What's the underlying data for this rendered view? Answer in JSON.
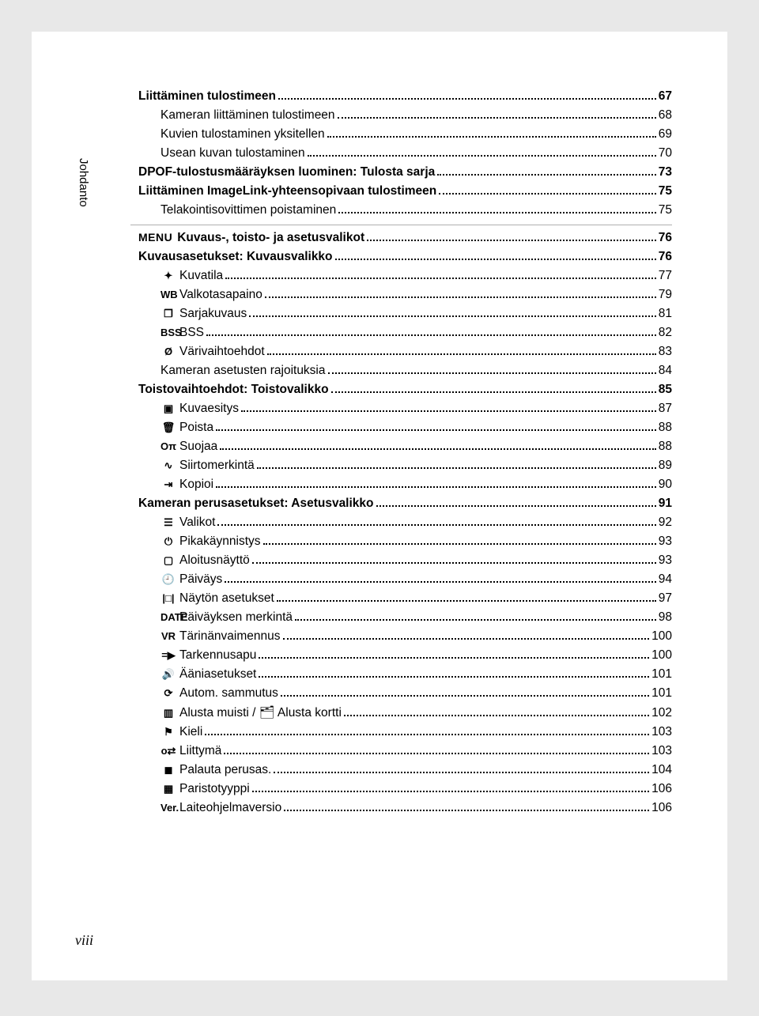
{
  "page_number": "viii",
  "vertical_tab": "Johdanto",
  "section1": [
    {
      "label": "Liittäminen tulostimeen",
      "page": "67",
      "indent": 0,
      "bold": true,
      "icon": ""
    },
    {
      "label": "Kameran liittäminen tulostimeen",
      "page": "68",
      "indent": 1,
      "bold": false,
      "icon": ""
    },
    {
      "label": "Kuvien tulostaminen yksitellen",
      "page": "69",
      "indent": 1,
      "bold": false,
      "icon": ""
    },
    {
      "label": "Usean kuvan tulostaminen",
      "page": "70",
      "indent": 1,
      "bold": false,
      "icon": ""
    },
    {
      "label": "DPOF-tulostusmääräyksen luominen: Tulosta sarja",
      "page": "73",
      "indent": 0,
      "bold": true,
      "icon": ""
    },
    {
      "label": "Liittäminen ImageLink-yhteensopivaan tulostimeen",
      "page": "75",
      "indent": 0,
      "bold": true,
      "icon": ""
    },
    {
      "label": "Telakointisovittimen poistaminen",
      "page": "75",
      "indent": 1,
      "bold": false,
      "icon": ""
    }
  ],
  "section2_header": {
    "prefix": "MENU",
    "label": "Kuvaus-, toisto- ja asetusvalikot",
    "page": "76"
  },
  "section2": [
    {
      "label": "Kuvausasetukset: Kuvausvalikko",
      "page": "76",
      "indent": 0,
      "bold": true,
      "icon": ""
    },
    {
      "label": "Kuvatila",
      "page": "77",
      "indent": 1,
      "bold": false,
      "icon": "✦"
    },
    {
      "label": "Valkotasapaino",
      "page": "79",
      "indent": 1,
      "bold": false,
      "icon": "WB"
    },
    {
      "label": "Sarjakuvaus",
      "page": "81",
      "indent": 1,
      "bold": false,
      "icon": "❐"
    },
    {
      "label": "BSS",
      "page": "82",
      "indent": 1,
      "bold": false,
      "icon": "BSS"
    },
    {
      "label": "Värivaihtoehdot",
      "page": "83",
      "indent": 1,
      "bold": false,
      "icon": "Ø"
    },
    {
      "label": "Kameran asetusten rajoituksia",
      "page": "84",
      "indent": 1,
      "bold": false,
      "icon": ""
    },
    {
      "label": "Toistovaihtoehdot: Toistovalikko",
      "page": "85",
      "indent": 0,
      "bold": true,
      "icon": ""
    },
    {
      "label": "Kuvaesitys",
      "page": "87",
      "indent": 1,
      "bold": false,
      "icon": "▣"
    },
    {
      "label": "Poista",
      "page": "88",
      "indent": 1,
      "bold": false,
      "icon": "🗑"
    },
    {
      "label": "Suojaa",
      "page": "88",
      "indent": 1,
      "bold": false,
      "icon": "Oπ"
    },
    {
      "label": "Siirtomerkintä",
      "page": "89",
      "indent": 1,
      "bold": false,
      "icon": "∿"
    },
    {
      "label": "Kopioi",
      "page": "90",
      "indent": 1,
      "bold": false,
      "icon": "⇥"
    },
    {
      "label": "Kameran perusasetukset: Asetusvalikko",
      "page": "91",
      "indent": 0,
      "bold": true,
      "icon": ""
    },
    {
      "label": "Valikot",
      "page": "92",
      "indent": 1,
      "bold": false,
      "icon": "☰"
    },
    {
      "label": "Pikakäynnistys",
      "page": "93",
      "indent": 1,
      "bold": false,
      "icon": "⏻"
    },
    {
      "label": "Aloitusnäyttö",
      "page": "93",
      "indent": 1,
      "bold": false,
      "icon": "▢"
    },
    {
      "label": "Päiväys",
      "page": "94",
      "indent": 1,
      "bold": false,
      "icon": "🕘"
    },
    {
      "label": "Näytön asetukset",
      "page": "97",
      "indent": 1,
      "bold": false,
      "icon": "|□|"
    },
    {
      "label": "Päiväyksen merkintä",
      "page": "98",
      "indent": 1,
      "bold": false,
      "icon": "DATE"
    },
    {
      "label": "Tärinänvaimennus",
      "page": "100",
      "indent": 1,
      "bold": false,
      "icon": "VR"
    },
    {
      "label": "Tarkennusapu",
      "page": "100",
      "indent": 1,
      "bold": false,
      "icon": "=▶"
    },
    {
      "label": "Ääniasetukset",
      "page": "101",
      "indent": 1,
      "bold": false,
      "icon": "🔊"
    },
    {
      "label": "Autom. sammutus",
      "page": "101",
      "indent": 1,
      "bold": false,
      "icon": "⟳"
    },
    {
      "label": "Alusta muisti / 🗂 Alusta kortti",
      "page": "102",
      "indent": 1,
      "bold": false,
      "icon": "▥"
    },
    {
      "label": "Kieli",
      "page": "103",
      "indent": 1,
      "bold": false,
      "icon": "⚑"
    },
    {
      "label": "Liittymä",
      "page": "103",
      "indent": 1,
      "bold": false,
      "icon": "o⇄"
    },
    {
      "label": "Palauta perusas.",
      "page": "104",
      "indent": 1,
      "bold": false,
      "icon": "◼"
    },
    {
      "label": "Paristotyyppi",
      "page": "106",
      "indent": 1,
      "bold": false,
      "icon": "▦"
    },
    {
      "label": "Laiteohjelmaversio",
      "page": "106",
      "indent": 1,
      "bold": false,
      "icon": "Ver."
    }
  ],
  "colors": {
    "bg": "#e8e8e8",
    "page": "#ffffff",
    "text": "#000000",
    "sep": "#b0b0b0"
  }
}
